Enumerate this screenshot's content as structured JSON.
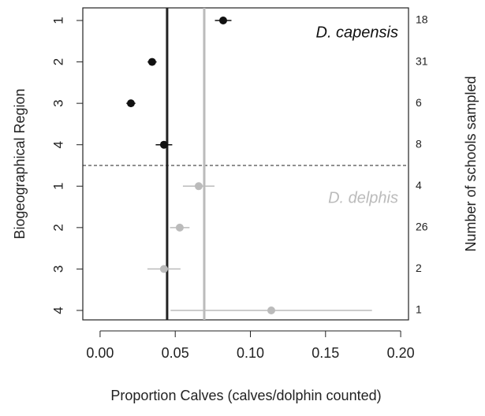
{
  "chart_data": {
    "type": "dot",
    "x_label": "Proportion Calves (calves/dolphin counted)",
    "y_label": "Biogeographical Region",
    "y2_label": "Number of schools sampled",
    "xlim": [
      -0.0115,
      0.2052
    ],
    "xticks": [
      {
        "value": 0,
        "label": "0.00"
      },
      {
        "value": 0.05,
        "label": "0.05"
      },
      {
        "value": 0.1,
        "label": "0.10"
      },
      {
        "value": 0.15,
        "label": "0.15"
      },
      {
        "value": 0.2,
        "label": "0.20"
      }
    ],
    "series": [
      {
        "name": "D. capensis",
        "color": "#111111",
        "categories": [
          "1",
          "2",
          "3",
          "4"
        ],
        "values": [
          0.0819,
          0.0346,
          0.0205,
          0.0425
        ],
        "errors": [
          0.0055,
          0.003,
          0.003,
          0.0055
        ],
        "schools_sampled": [
          18,
          31,
          6,
          8
        ]
      },
      {
        "name": "D. delphis",
        "color": "#bbbbbb",
        "categories": [
          "1",
          "2",
          "3",
          "4"
        ],
        "values": [
          0.0656,
          0.053,
          0.0425,
          0.1139
        ],
        "errors": [
          0.0105,
          0.0065,
          0.011,
          0.067
        ],
        "schools_sampled": [
          4,
          26,
          2,
          1
        ]
      }
    ],
    "reference_lines": [
      {
        "value": 0.0446,
        "color": "#222222"
      },
      {
        "value": 0.0693,
        "color": "#bbbbbb"
      }
    ]
  }
}
